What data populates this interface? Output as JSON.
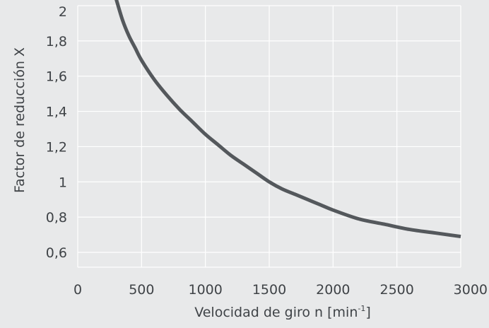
{
  "chart_data": {
    "type": "line",
    "xlabel": "Velocidad de giro n [min",
    "xlabel_sup": "-1",
    "xlabel_suffix": "]",
    "ylabel": "Factor de reducción X",
    "xlim": [
      0,
      3000
    ],
    "ylim": [
      0.6,
      2.0
    ],
    "x_ticks": [
      0,
      500,
      1000,
      1500,
      2000,
      2500,
      3000
    ],
    "x_tick_labels": [
      "0",
      "500",
      "1000",
      "1500",
      "2000",
      "2500",
      "3000"
    ],
    "y_ticks": [
      0.6,
      0.8,
      1.0,
      1.2,
      1.4,
      1.6,
      1.8,
      2.0
    ],
    "y_tick_labels": [
      "0,6",
      "0,8",
      "1",
      "1,2",
      "1,4",
      "1,6",
      "1,8",
      "2"
    ],
    "grid": true,
    "series": [
      {
        "color": "#54585c",
        "x": [
          300,
          350,
          400,
          450,
          500,
          600,
          700,
          800,
          900,
          1000,
          1100,
          1200,
          1300,
          1400,
          1500,
          1600,
          1700,
          1800,
          1900,
          2000,
          2200,
          2400,
          2600,
          2800,
          3000
        ],
        "y": [
          2.04,
          1.92,
          1.83,
          1.76,
          1.69,
          1.58,
          1.49,
          1.41,
          1.34,
          1.27,
          1.21,
          1.15,
          1.1,
          1.05,
          1.0,
          0.96,
          0.93,
          0.9,
          0.87,
          0.84,
          0.79,
          0.76,
          0.73,
          0.71,
          0.69
        ]
      }
    ]
  },
  "colors": {
    "background": "#e8e9ea",
    "grid": "#ffffff",
    "text": "#3f4347",
    "line": "#54585c"
  }
}
